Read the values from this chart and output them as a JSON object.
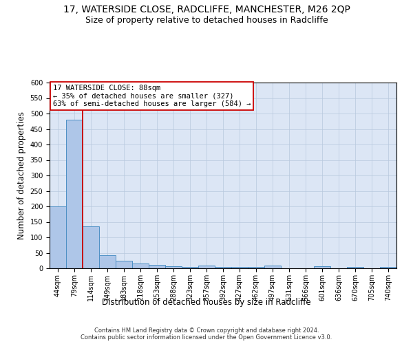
{
  "title": "17, WATERSIDE CLOSE, RADCLIFFE, MANCHESTER, M26 2QP",
  "subtitle": "Size of property relative to detached houses in Radcliffe",
  "xlabel": "Distribution of detached houses by size in Radcliffe",
  "ylabel": "Number of detached properties",
  "footer": "Contains HM Land Registry data © Crown copyright and database right 2024.\nContains public sector information licensed under the Open Government Licence v3.0.",
  "bin_labels": [
    "44sqm",
    "79sqm",
    "114sqm",
    "149sqm",
    "183sqm",
    "218sqm",
    "253sqm",
    "288sqm",
    "323sqm",
    "357sqm",
    "392sqm",
    "427sqm",
    "462sqm",
    "497sqm",
    "531sqm",
    "566sqm",
    "601sqm",
    "636sqm",
    "670sqm",
    "705sqm",
    "740sqm"
  ],
  "bar_values": [
    200,
    480,
    135,
    43,
    25,
    15,
    11,
    6,
    5,
    10,
    5,
    5,
    5,
    8,
    0,
    0,
    6,
    0,
    5,
    0,
    5
  ],
  "bar_color": "#aec6e8",
  "bar_edge_color": "#4d8fc4",
  "annotation_box_text": "17 WATERSIDE CLOSE: 88sqm\n← 35% of detached houses are smaller (327)\n63% of semi-detached houses are larger (584) →",
  "property_line_x": 1.5,
  "red_line_color": "#cc0000",
  "annotation_box_color": "#ffffff",
  "annotation_box_edge": "#cc0000",
  "ylim": [
    0,
    600
  ],
  "yticks": [
    0,
    50,
    100,
    150,
    200,
    250,
    300,
    350,
    400,
    450,
    500,
    550,
    600
  ],
  "bg_color": "#dce6f5",
  "title_fontsize": 10,
  "subtitle_fontsize": 9,
  "label_fontsize": 8.5,
  "tick_fontsize": 7,
  "annotation_fontsize": 7.5,
  "footer_fontsize": 6
}
